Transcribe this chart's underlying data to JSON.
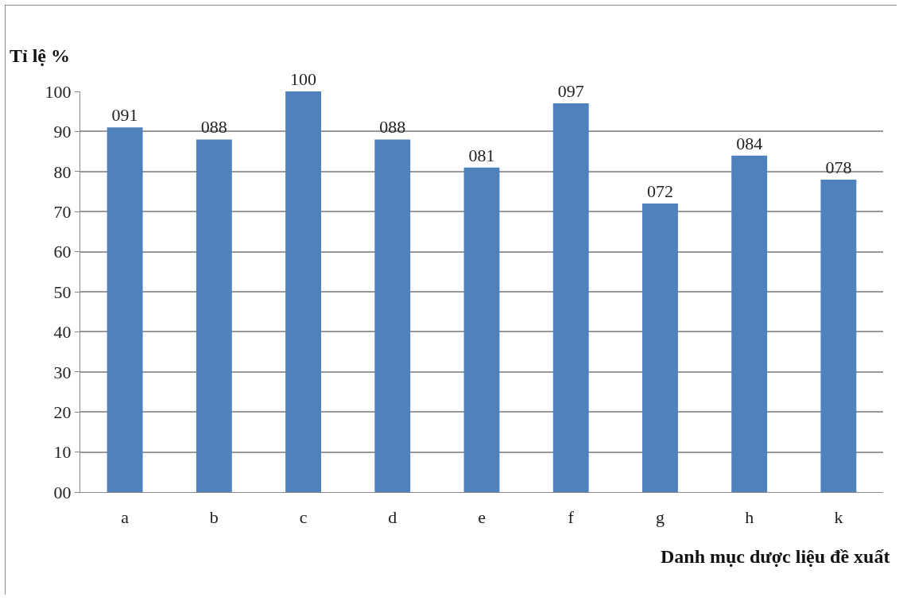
{
  "chart_data": {
    "type": "bar",
    "xlabel": "Danh mục dược liệu đề xuất",
    "ylabel": "Tỉ lệ %",
    "categories": [
      "a",
      "b",
      "c",
      "d",
      "e",
      "f",
      "g",
      "h",
      "k"
    ],
    "values": [
      91,
      88,
      100,
      88,
      81,
      97,
      72,
      84,
      78
    ],
    "value_labels": [
      "091",
      "088",
      "100",
      "088",
      "081",
      "097",
      "072",
      "084",
      "078"
    ],
    "color": "#4f81bd",
    "ylim": [
      0,
      100
    ],
    "yticks": [
      {
        "value": 0,
        "label": "00"
      },
      10,
      20,
      30,
      40,
      50,
      60,
      70,
      80,
      90,
      100
    ],
    "grid": "y"
  }
}
